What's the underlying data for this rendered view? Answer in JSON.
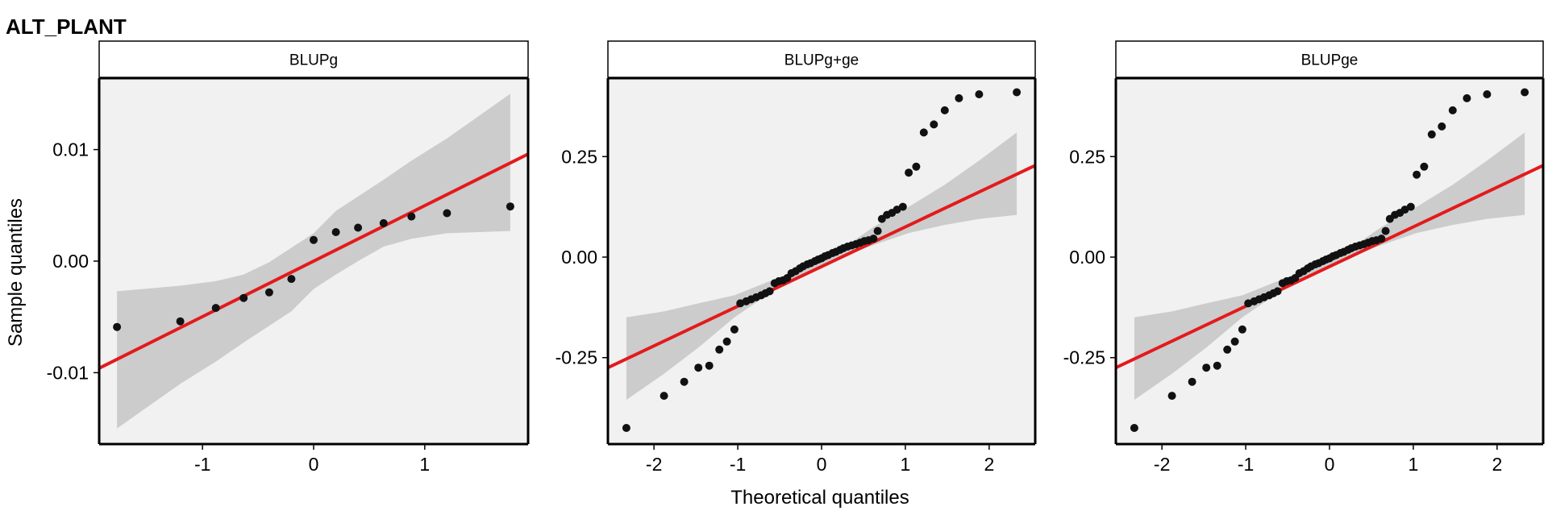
{
  "figure": {
    "title": "ALT_PLANT",
    "ylabel": "Sample quantiles",
    "xlabel": "Theoretical quantiles"
  },
  "colors": {
    "panel_bg": "#f1f1f1",
    "band": "#cccccc",
    "fit_line": "#e31a1c",
    "points": "#111111",
    "strip_bg": "#ffffff"
  },
  "chart_data": [
    {
      "type": "scatter",
      "strip_label": "BLUPg",
      "xlim": [
        -1.93,
        1.93
      ],
      "ylim": [
        -0.0164,
        0.0164
      ],
      "x_ticks": [
        -1,
        0,
        1
      ],
      "x_tick_labels": [
        "-1",
        "0",
        "1"
      ],
      "y_ticks": [
        -0.01,
        0.0,
        0.01
      ],
      "y_tick_labels": [
        "-0.01",
        "0.00",
        "0.01"
      ],
      "grid": false,
      "points": [
        [
          -1.77,
          -0.0059
        ],
        [
          -1.2,
          -0.0054
        ],
        [
          -0.88,
          -0.0042
        ],
        [
          -0.63,
          -0.0033
        ],
        [
          -0.4,
          -0.0028
        ],
        [
          -0.2,
          -0.0016
        ],
        [
          0.0,
          0.0019
        ],
        [
          0.2,
          0.0026
        ],
        [
          0.4,
          0.003
        ],
        [
          0.63,
          0.0034
        ],
        [
          0.88,
          0.004
        ],
        [
          1.2,
          0.0043
        ],
        [
          1.77,
          0.0049
        ]
      ],
      "fit_line": {
        "x": [
          -1.93,
          1.93
        ],
        "y": [
          -0.0096,
          0.0096
        ]
      },
      "band": {
        "x": [
          -1.77,
          -1.2,
          -0.88,
          -0.63,
          -0.4,
          -0.2,
          0.0,
          0.2,
          0.4,
          0.63,
          0.88,
          1.2,
          1.77
        ],
        "lower": [
          -0.015,
          -0.011,
          -0.009,
          -0.0073,
          -0.0058,
          -0.0045,
          -0.0025,
          -0.0012,
          0.0,
          0.0013,
          0.002,
          0.0025,
          0.0027
        ],
        "upper": [
          -0.0027,
          -0.0022,
          -0.0018,
          -0.0012,
          -0.0001,
          0.0012,
          0.0025,
          0.0045,
          0.0058,
          0.0073,
          0.009,
          0.011,
          0.015
        ]
      }
    },
    {
      "type": "scatter",
      "strip_label": "BLUPg+ge",
      "xlim": [
        -2.55,
        2.55
      ],
      "ylim": [
        -0.465,
        0.445
      ],
      "x_ticks": [
        -2,
        -1,
        0,
        1,
        2
      ],
      "x_tick_labels": [
        "-2",
        "-1",
        "0",
        "1",
        "2"
      ],
      "y_ticks": [
        -0.25,
        0.0,
        0.25
      ],
      "y_tick_labels": [
        "-0.25",
        "0.00",
        "0.25"
      ],
      "grid": false,
      "points": [
        [
          -2.33,
          -0.425
        ],
        [
          -1.88,
          -0.345
        ],
        [
          -1.64,
          -0.31
        ],
        [
          -1.47,
          -0.275
        ],
        [
          -1.34,
          -0.27
        ],
        [
          -1.22,
          -0.23
        ],
        [
          -1.13,
          -0.21
        ],
        [
          -1.04,
          -0.18
        ],
        [
          -0.97,
          -0.115
        ],
        [
          -0.9,
          -0.11
        ],
        [
          -0.84,
          -0.105
        ],
        [
          -0.78,
          -0.1
        ],
        [
          -0.72,
          -0.095
        ],
        [
          -0.67,
          -0.09
        ],
        [
          -0.62,
          -0.085
        ],
        [
          -0.56,
          -0.065
        ],
        [
          -0.51,
          -0.06
        ],
        [
          -0.46,
          -0.058
        ],
        [
          -0.41,
          -0.052
        ],
        [
          -0.36,
          -0.04
        ],
        [
          -0.31,
          -0.035
        ],
        [
          -0.26,
          -0.028
        ],
        [
          -0.22,
          -0.023
        ],
        [
          -0.17,
          -0.018
        ],
        [
          -0.13,
          -0.015
        ],
        [
          -0.08,
          -0.01
        ],
        [
          -0.04,
          -0.006
        ],
        [
          0.0,
          -0.003
        ],
        [
          0.04,
          0.002
        ],
        [
          0.08,
          0.005
        ],
        [
          0.13,
          0.01
        ],
        [
          0.17,
          0.013
        ],
        [
          0.22,
          0.018
        ],
        [
          0.26,
          0.022
        ],
        [
          0.31,
          0.026
        ],
        [
          0.36,
          0.029
        ],
        [
          0.41,
          0.032
        ],
        [
          0.46,
          0.036
        ],
        [
          0.51,
          0.04
        ],
        [
          0.56,
          0.042
        ],
        [
          0.62,
          0.046
        ],
        [
          0.67,
          0.065
        ],
        [
          0.72,
          0.095
        ],
        [
          0.78,
          0.105
        ],
        [
          0.84,
          0.11
        ],
        [
          0.9,
          0.118
        ],
        [
          0.97,
          0.125
        ],
        [
          1.04,
          0.21
        ],
        [
          1.13,
          0.225
        ],
        [
          1.22,
          0.31
        ],
        [
          1.34,
          0.33
        ],
        [
          1.47,
          0.365
        ],
        [
          1.64,
          0.395
        ],
        [
          1.88,
          0.405
        ],
        [
          2.33,
          0.41
        ]
      ],
      "fit_line": {
        "x": [
          -2.55,
          2.55
        ],
        "y": [
          -0.275,
          0.228
        ]
      },
      "band": {
        "x": [
          -2.33,
          -1.88,
          -1.47,
          -1.04,
          -0.62,
          -0.31,
          0.0,
          0.31,
          0.62,
          1.04,
          1.47,
          1.88,
          2.33
        ],
        "lower": [
          -0.355,
          -0.29,
          -0.225,
          -0.15,
          -0.09,
          -0.055,
          -0.025,
          0.005,
          0.03,
          0.06,
          0.08,
          0.095,
          0.105
        ],
        "upper": [
          -0.15,
          -0.135,
          -0.115,
          -0.095,
          -0.06,
          -0.035,
          -0.005,
          0.03,
          0.075,
          0.125,
          0.18,
          0.24,
          0.31
        ]
      }
    },
    {
      "type": "scatter",
      "strip_label": "BLUPge",
      "xlim": [
        -2.55,
        2.55
      ],
      "ylim": [
        -0.465,
        0.445
      ],
      "x_ticks": [
        -2,
        -1,
        0,
        1,
        2
      ],
      "x_tick_labels": [
        "-2",
        "-1",
        "0",
        "1",
        "2"
      ],
      "y_ticks": [
        -0.25,
        0.0,
        0.25
      ],
      "y_tick_labels": [
        "-0.25",
        "0.00",
        "0.25"
      ],
      "grid": false,
      "points": [
        [
          -2.33,
          -0.425
        ],
        [
          -1.88,
          -0.345
        ],
        [
          -1.64,
          -0.31
        ],
        [
          -1.47,
          -0.275
        ],
        [
          -1.34,
          -0.27
        ],
        [
          -1.22,
          -0.23
        ],
        [
          -1.13,
          -0.21
        ],
        [
          -1.04,
          -0.18
        ],
        [
          -0.97,
          -0.115
        ],
        [
          -0.9,
          -0.11
        ],
        [
          -0.84,
          -0.105
        ],
        [
          -0.78,
          -0.1
        ],
        [
          -0.72,
          -0.095
        ],
        [
          -0.67,
          -0.09
        ],
        [
          -0.62,
          -0.085
        ],
        [
          -0.56,
          -0.065
        ],
        [
          -0.51,
          -0.06
        ],
        [
          -0.46,
          -0.058
        ],
        [
          -0.41,
          -0.052
        ],
        [
          -0.36,
          -0.04
        ],
        [
          -0.31,
          -0.035
        ],
        [
          -0.26,
          -0.028
        ],
        [
          -0.22,
          -0.023
        ],
        [
          -0.17,
          -0.018
        ],
        [
          -0.13,
          -0.015
        ],
        [
          -0.08,
          -0.01
        ],
        [
          -0.04,
          -0.006
        ],
        [
          0.0,
          -0.003
        ],
        [
          0.04,
          0.002
        ],
        [
          0.08,
          0.005
        ],
        [
          0.13,
          0.01
        ],
        [
          0.17,
          0.013
        ],
        [
          0.22,
          0.018
        ],
        [
          0.26,
          0.022
        ],
        [
          0.31,
          0.026
        ],
        [
          0.36,
          0.029
        ],
        [
          0.41,
          0.032
        ],
        [
          0.46,
          0.036
        ],
        [
          0.51,
          0.04
        ],
        [
          0.56,
          0.042
        ],
        [
          0.62,
          0.046
        ],
        [
          0.67,
          0.065
        ],
        [
          0.72,
          0.095
        ],
        [
          0.78,
          0.105
        ],
        [
          0.84,
          0.11
        ],
        [
          0.9,
          0.118
        ],
        [
          0.97,
          0.125
        ],
        [
          1.04,
          0.205
        ],
        [
          1.13,
          0.225
        ],
        [
          1.22,
          0.305
        ],
        [
          1.34,
          0.325
        ],
        [
          1.47,
          0.365
        ],
        [
          1.64,
          0.395
        ],
        [
          1.88,
          0.405
        ],
        [
          2.33,
          0.41
        ]
      ],
      "fit_line": {
        "x": [
          -2.55,
          2.55
        ],
        "y": [
          -0.275,
          0.228
        ]
      },
      "band": {
        "x": [
          -2.33,
          -1.88,
          -1.47,
          -1.04,
          -0.62,
          -0.31,
          0.0,
          0.31,
          0.62,
          1.04,
          1.47,
          1.88,
          2.33
        ],
        "lower": [
          -0.355,
          -0.29,
          -0.225,
          -0.15,
          -0.09,
          -0.055,
          -0.025,
          0.005,
          0.03,
          0.06,
          0.08,
          0.095,
          0.105
        ],
        "upper": [
          -0.15,
          -0.135,
          -0.115,
          -0.095,
          -0.06,
          -0.035,
          -0.005,
          0.03,
          0.075,
          0.125,
          0.18,
          0.24,
          0.31
        ]
      }
    }
  ]
}
